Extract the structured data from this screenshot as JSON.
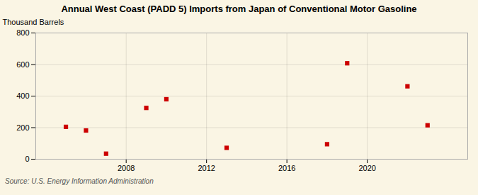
{
  "chart_data": {
    "type": "scatter",
    "title": "Annual West Coast (PADD 5) Imports from Japan of Conventional Motor Gasoline",
    "ylabel": "Thousand Barrels",
    "source": "Source: U.S. Energy Information Administration",
    "x": [
      2005,
      2006,
      2007,
      2009,
      2010,
      2013,
      2018,
      2019,
      2022,
      2023
    ],
    "values": [
      205,
      182,
      35,
      325,
      380,
      72,
      95,
      608,
      462,
      215
    ],
    "color": "#cc0000",
    "marker": "square",
    "xlim": [
      2003.5,
      2025.0
    ],
    "ylim": [
      0,
      800
    ],
    "xticks": [
      2008,
      2012,
      2016,
      2020
    ],
    "yticks": [
      0,
      200,
      400,
      600,
      800
    ],
    "grid": true
  }
}
